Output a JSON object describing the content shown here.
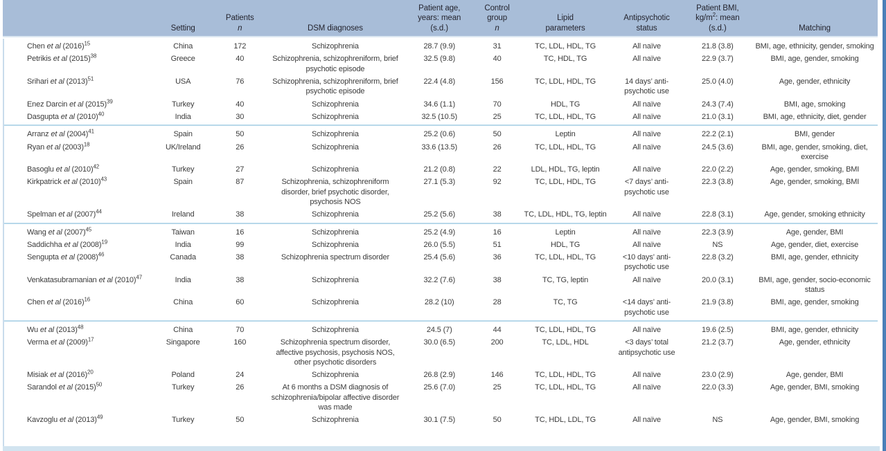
{
  "colors": {
    "header_bg": "#a8bdd8",
    "header_text": "#24242e",
    "body_text": "#3b3b3b",
    "group_separator": "#b7d8ea",
    "bottom_strip": "#d2e4f0",
    "right_edge_line": "#4b7fb8",
    "left_edge_line": "#c9dcec"
  },
  "table": {
    "columns": [
      {
        "id": "study",
        "label": "",
        "width": "17%",
        "align": "left",
        "wrap": true
      },
      {
        "id": "setting",
        "label": "Setting",
        "width": "7.2%"
      },
      {
        "id": "patients_n",
        "label": "Patients\n*n*",
        "width": "5.8%"
      },
      {
        "id": "dsm",
        "label": "DSM diagnoses",
        "width": "16%",
        "wrap": true
      },
      {
        "id": "age",
        "label": "Patient age,\nyears: mean\n(s.d.)",
        "width": "7.8%"
      },
      {
        "id": "control_n",
        "label": "Control\ngroup\n*n*",
        "width": "5.4%"
      },
      {
        "id": "lipid",
        "label": "Lipid\nparameters",
        "width": "10.2%"
      },
      {
        "id": "antipsychotic",
        "label": "Antipsychotic\nstatus",
        "width": "8.4%",
        "wrap": true
      },
      {
        "id": "bmi",
        "label": "Patient BMI,\nkg/m^2^: mean\n(s.d.)",
        "width": "7.8%"
      },
      {
        "id": "matching",
        "label": "Matching",
        "width": "14.4%",
        "wrap": true
      }
    ],
    "rows": [
      {
        "study": "Chen *et al* (2016)^15^",
        "setting": "China",
        "patients_n": "172",
        "dsm": "Schizophrenia",
        "age": "28.7 (9.9)",
        "control_n": "31",
        "lipid": "TC, LDL, HDL, TG",
        "antipsychotic": "All naïve",
        "bmi": "21.8 (3.8)",
        "matching": "BMI, age, ethnicity, gender, smoking"
      },
      {
        "study": "Petrikis *et al* (2015)^38^",
        "setting": "Greece",
        "patients_n": "40",
        "dsm": "Schizophrenia, schizophreniform, brief psychotic episode",
        "age": "32.5 (9.8)",
        "control_n": "40",
        "lipid": "TC, HDL, TG",
        "antipsychotic": "All naïve",
        "bmi": "22.9 (3.7)",
        "matching": "BMI, age, gender, smoking"
      },
      {
        "study": "Srihari *et al* (2013)^51^",
        "setting": "USA",
        "patients_n": "76",
        "dsm": "Schizophrenia, schizophreniform, brief psychotic episode",
        "age": "22.4 (4.8)",
        "control_n": "156",
        "lipid": "TC, LDL, HDL, TG",
        "antipsychotic": "14 days’ anti-psychotic use",
        "bmi": "25.0 (4.0)",
        "matching": "Age, gender, ethnicity"
      },
      {
        "study": "Enez Darcin *et al* (2015)^39^",
        "setting": "Turkey",
        "patients_n": "40",
        "dsm": "Schizophrenia",
        "age": "34.6 (1.1)",
        "control_n": "70",
        "lipid": "HDL, TG",
        "antipsychotic": "All naïve",
        "bmi": "24.3 (7.4)",
        "matching": "BMI, age, smoking"
      },
      {
        "study": "Dasgupta *et al* (2010)^40^",
        "setting": "India",
        "patients_n": "30",
        "dsm": "Schizophrenia",
        "age": "32.5 (10.5)",
        "control_n": "25",
        "lipid": "TC, LDL, HDL, TG",
        "antipsychotic": "All naïve",
        "bmi": "21.0 (3.1)",
        "matching": "BMI, age, ethnicity, diet, gender",
        "group_end": true
      },
      {
        "study": "Arranz *et al* (2004)^41^",
        "setting": "Spain",
        "patients_n": "50",
        "dsm": "Schizophrenia",
        "age": "25.2 (0.6)",
        "control_n": "50",
        "lipid": "Leptin",
        "antipsychotic": "All naïve",
        "bmi": "22.2 (2.1)",
        "matching": "BMI, gender"
      },
      {
        "study": "Ryan *et al* (2003)^18^",
        "setting": "UK/Ireland",
        "patients_n": "26",
        "dsm": "Schizophrenia",
        "age": "33.6 (13.5)",
        "control_n": "26",
        "lipid": "TC, LDL, HDL, TG",
        "antipsychotic": "All naïve",
        "bmi": "24.5 (3.6)",
        "matching": "BMI, age, gender, smoking, diet, exercise"
      },
      {
        "study": "Basoglu *et al* (2010)^42^",
        "setting": "Turkey",
        "patients_n": "27",
        "dsm": "Schizophrenia",
        "age": "21.2 (0.8)",
        "control_n": "22",
        "lipid": "LDL, HDL, TG, leptin",
        "antipsychotic": "All naïve",
        "bmi": "22.0 (2.2)",
        "matching": "Age, gender, smoking, BMI"
      },
      {
        "study": "Kirkpatrick *et al* (2010)^43^",
        "setting": "Spain",
        "patients_n": "87",
        "dsm": "Schizophrenia, schizophreniform disorder, brief psychotic disorder, psychosis NOS",
        "age": "27.1 (5.3)",
        "control_n": "92",
        "lipid": "TC, LDL, HDL, TG",
        "antipsychotic": "<7 days’ anti-psychotic use",
        "bmi": "22.3 (3.8)",
        "matching": "Age, gender, smoking, BMI"
      },
      {
        "study": "Spelman *et al* (2007)^44^",
        "setting": "Ireland",
        "patients_n": "38",
        "dsm": "Schizophrenia",
        "age": "25.2 (5.6)",
        "control_n": "38",
        "lipid": "TC, LDL, HDL, TG, leptin",
        "antipsychotic": "All naïve",
        "bmi": "22.8 (3.1)",
        "matching": "Age, gender, smoking ethnicity",
        "group_end": true
      },
      {
        "study": "Wang *et al* (2007)^45^",
        "setting": "Taiwan",
        "patients_n": "16",
        "dsm": "Schizophrenia",
        "age": "25.2 (4.9)",
        "control_n": "16",
        "lipid": "Leptin",
        "antipsychotic": "All naïve",
        "bmi": "22.3 (3.9)",
        "matching": "Age, gender, BMI"
      },
      {
        "study": "Saddichha *et al* (2008)^19^",
        "setting": "India",
        "patients_n": "99",
        "dsm": "Schizophrenia",
        "age": "26.0 (5.5)",
        "control_n": "51",
        "lipid": "HDL, TG",
        "antipsychotic": "All naïve",
        "bmi": "NS",
        "matching": "Age, gender, diet, exercise"
      },
      {
        "study": "Sengupta *et al* (2008)^46^",
        "setting": "Canada",
        "patients_n": "38",
        "dsm": "Schizophrenia spectrum disorder",
        "age": "25.4 (5.6)",
        "control_n": "36",
        "lipid": "TC, LDL, HDL, TG",
        "antipsychotic": "<10 days’ anti-psychotic use",
        "bmi": "22.8 (3.2)",
        "matching": "BMI, age, gender, ethnicity"
      },
      {
        "study": "Venkatasubramanian *et al* (2010)^47^",
        "setting": "India",
        "patients_n": "38",
        "dsm": "Schizophrenia",
        "age": "32.2 (7.6)",
        "control_n": "38",
        "lipid": "TC, TG, leptin",
        "antipsychotic": "All naïve",
        "bmi": "20.0 (3.1)",
        "matching": "BMI, age, gender, socio-economic status"
      },
      {
        "study": "Chen *et al* (2016)^16^",
        "setting": "China",
        "patients_n": "60",
        "dsm": "Schizophrenia",
        "age": "28.2 (10)",
        "control_n": "28",
        "lipid": "TC, TG",
        "antipsychotic": "<14 days’ anti-psychotic use",
        "bmi": "21.9 (3.8)",
        "matching": "BMI, age, gender, smoking",
        "group_end": true
      },
      {
        "study": "Wu *et al* (2013)^48^",
        "setting": "China",
        "patients_n": "70",
        "dsm": "Schizophrenia",
        "age": "24.5 (7)",
        "control_n": "44",
        "lipid": "TC, LDL, HDL, TG",
        "antipsychotic": "All naïve",
        "bmi": "19.6 (2.5)",
        "matching": "BMI, age, gender, ethnicity"
      },
      {
        "study": "Verma *et al* (2009)^17^",
        "setting": "Singapore",
        "patients_n": "160",
        "dsm": "Schizophrenia spectrum disorder, affective psychosis, psychosis NOS, other psychotic disorders",
        "age": "30.0 (6.5)",
        "control_n": "200",
        "lipid": "TC, LDL, HDL",
        "antipsychotic": "<3 days’ total antipsychotic use",
        "bmi": "21.2 (3.7)",
        "matching": "Age, gender, ethnicity"
      },
      {
        "study": "Misiak *et al* (2016)^20^",
        "setting": "Poland",
        "patients_n": "24",
        "dsm": "Schizophrenia",
        "age": "26.8 (2.9)",
        "control_n": "146",
        "lipid": "TC, LDL, HDL, TG",
        "antipsychotic": "All naïve",
        "bmi": "23.0 (2.9)",
        "matching": "Age, gender, BMI"
      },
      {
        "study": "Sarandol *et al* (2015)^50^",
        "setting": "Turkey",
        "patients_n": "26",
        "dsm": "At 6 months a DSM diagnosis of schizophrenia/bipolar affective disorder was made",
        "age": "25.6 (7.0)",
        "control_n": "25",
        "lipid": "TC, LDL, HDL, TG",
        "antipsychotic": "All naïve",
        "bmi": "22.0 (3.3)",
        "matching": "Age, gender, BMI, smoking"
      },
      {
        "study": "Kavzoglu *et al* (2013)^49^",
        "setting": "Turkey",
        "patients_n": "50",
        "dsm": "Schizophrenia",
        "age": "30.1 (7.5)",
        "control_n": "50",
        "lipid": "TC, HDL, LDL, TG",
        "antipsychotic": "All naïve",
        "bmi": "NS",
        "matching": "Age, gender, BMI, smoking"
      }
    ]
  }
}
